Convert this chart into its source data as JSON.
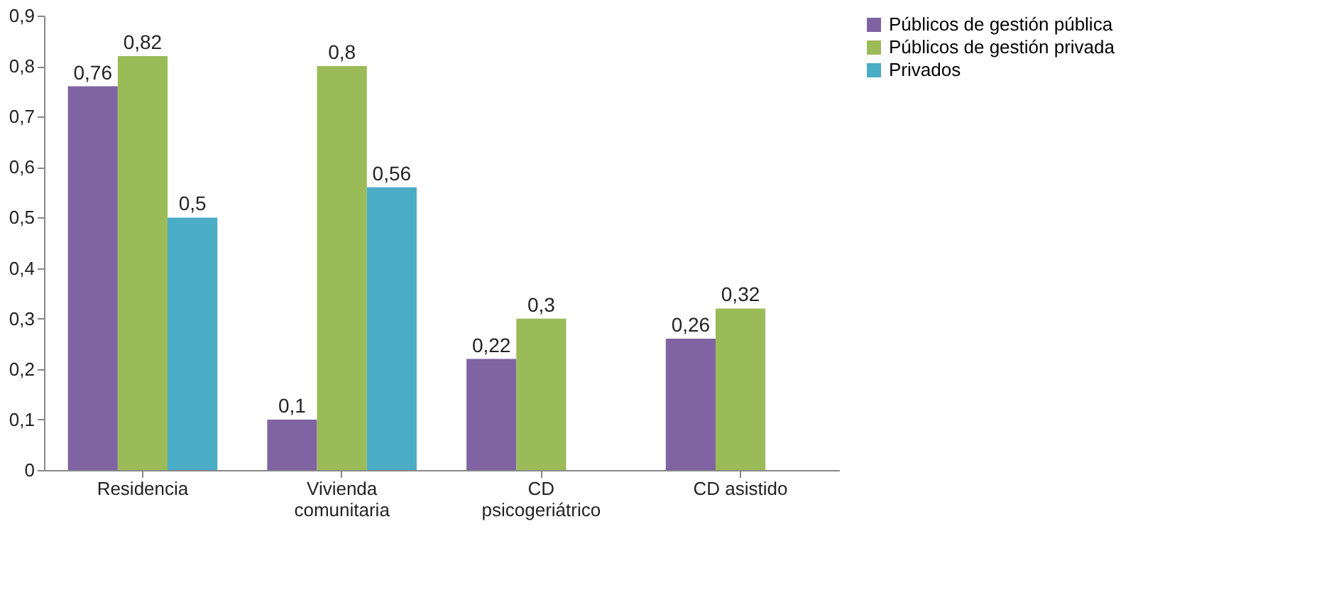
{
  "chart_data": {
    "type": "bar",
    "categories": [
      "Residencia",
      "Vivienda comunitaria",
      "CD psicogeriátrico",
      "CD asistido"
    ],
    "series": [
      {
        "name": "Públicos de gestión pública",
        "color": "#7f63a2",
        "values": [
          0.76,
          0.1,
          0.22,
          0.26
        ],
        "value_labels": [
          "0,76",
          "0,1",
          "0,22",
          "0,26"
        ]
      },
      {
        "name": "Públicos de gestión privada",
        "color": "#9bbb59",
        "values": [
          0.82,
          0.8,
          0.3,
          0.32
        ],
        "value_labels": [
          "0,82",
          "0,8",
          "0,3",
          "0,32"
        ]
      },
      {
        "name": "Privados",
        "color": "#4bacc6",
        "values": [
          0.5,
          0.56,
          null,
          null
        ],
        "value_labels": [
          "0,5",
          "0,56",
          null,
          null
        ]
      }
    ],
    "ylim": [
      0,
      0.9
    ],
    "yticks": [
      {
        "value": 0,
        "label": "0"
      },
      {
        "value": 0.1,
        "label": "0,1"
      },
      {
        "value": 0.2,
        "label": "0,2"
      },
      {
        "value": 0.3,
        "label": "0,3"
      },
      {
        "value": 0.4,
        "label": "0,4"
      },
      {
        "value": 0.5,
        "label": "0,5"
      },
      {
        "value": 0.6,
        "label": "0,6"
      },
      {
        "value": 0.7,
        "label": "0,7"
      },
      {
        "value": 0.8,
        "label": "0,8"
      },
      {
        "value": 0.9,
        "label": "0,9"
      }
    ],
    "grid": false,
    "legend": "right"
  }
}
